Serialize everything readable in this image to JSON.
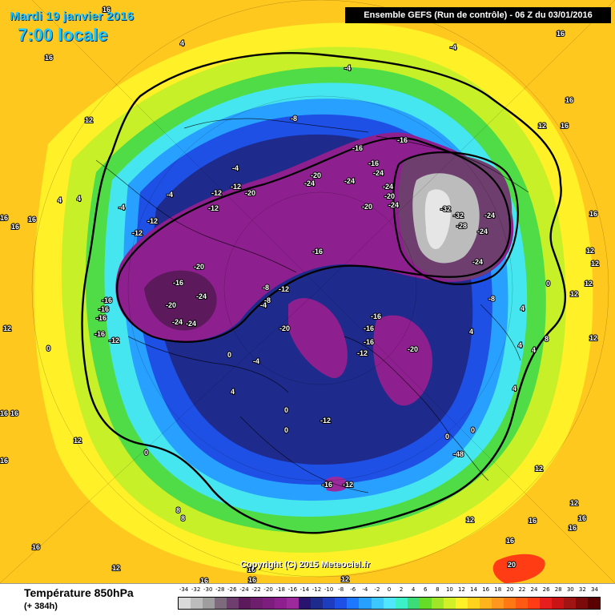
{
  "header": {
    "date": "Mardi 19 janvier 2016",
    "time": "7:00 locale",
    "run": "Ensemble GEFS  (Run de contrôle)  -  06 Z du 03/01/2016"
  },
  "footer": {
    "variable": "Température 850hPa",
    "lead": "(+ 384h)",
    "copyright": "Copyright (C) 2015 Meteociel.fr"
  },
  "legend": {
    "labels": [
      "-34",
      "-32",
      "-30",
      "-28",
      "-26",
      "-24",
      "-22",
      "-20",
      "-18",
      "-16",
      "-14",
      "-12",
      "-10",
      "-8",
      "-6",
      "-4",
      "-2",
      "0",
      "2",
      "4",
      "6",
      "8",
      "10",
      "12",
      "14",
      "16",
      "18",
      "20",
      "22",
      "24",
      "26",
      "28",
      "30",
      "32",
      "34"
    ],
    "colors": [
      "#d9d9d9",
      "#bcbcbc",
      "#9e9e9e",
      "#7d6a7d",
      "#6e3e6e",
      "#5c1a5c",
      "#6d1e6d",
      "#7d1d7d",
      "#8e1f8e",
      "#9d2a9d",
      "#28146e",
      "#1e2a8c",
      "#1e3cbe",
      "#1e50e6",
      "#1e78ff",
      "#28a0ff",
      "#3cc8ff",
      "#50e6ff",
      "#3cf0c8",
      "#3cdc78",
      "#64dc28",
      "#a0e628",
      "#d2f028",
      "#fff028",
      "#ffd21e",
      "#ffb41e",
      "#ff961e",
      "#ff7814",
      "#ff5a14",
      "#ff3c14",
      "#e61e1e",
      "#c81414",
      "#a01414",
      "#7d0a0a",
      "#5a0000"
    ]
  },
  "map_labels": [
    {
      "text": "-4"
    },
    {
      "text": "-8"
    },
    {
      "text": "-16"
    },
    {
      "text": "-20"
    },
    {
      "text": "-24"
    },
    {
      "text": "-32"
    },
    {
      "text": "-28"
    },
    {
      "text": "-12"
    },
    {
      "text": "4"
    },
    {
      "text": "0"
    },
    {
      "text": "12"
    },
    {
      "text": "16"
    },
    {
      "text": "8"
    },
    {
      "text": "20"
    },
    {
      "text": "-48"
    }
  ]
}
